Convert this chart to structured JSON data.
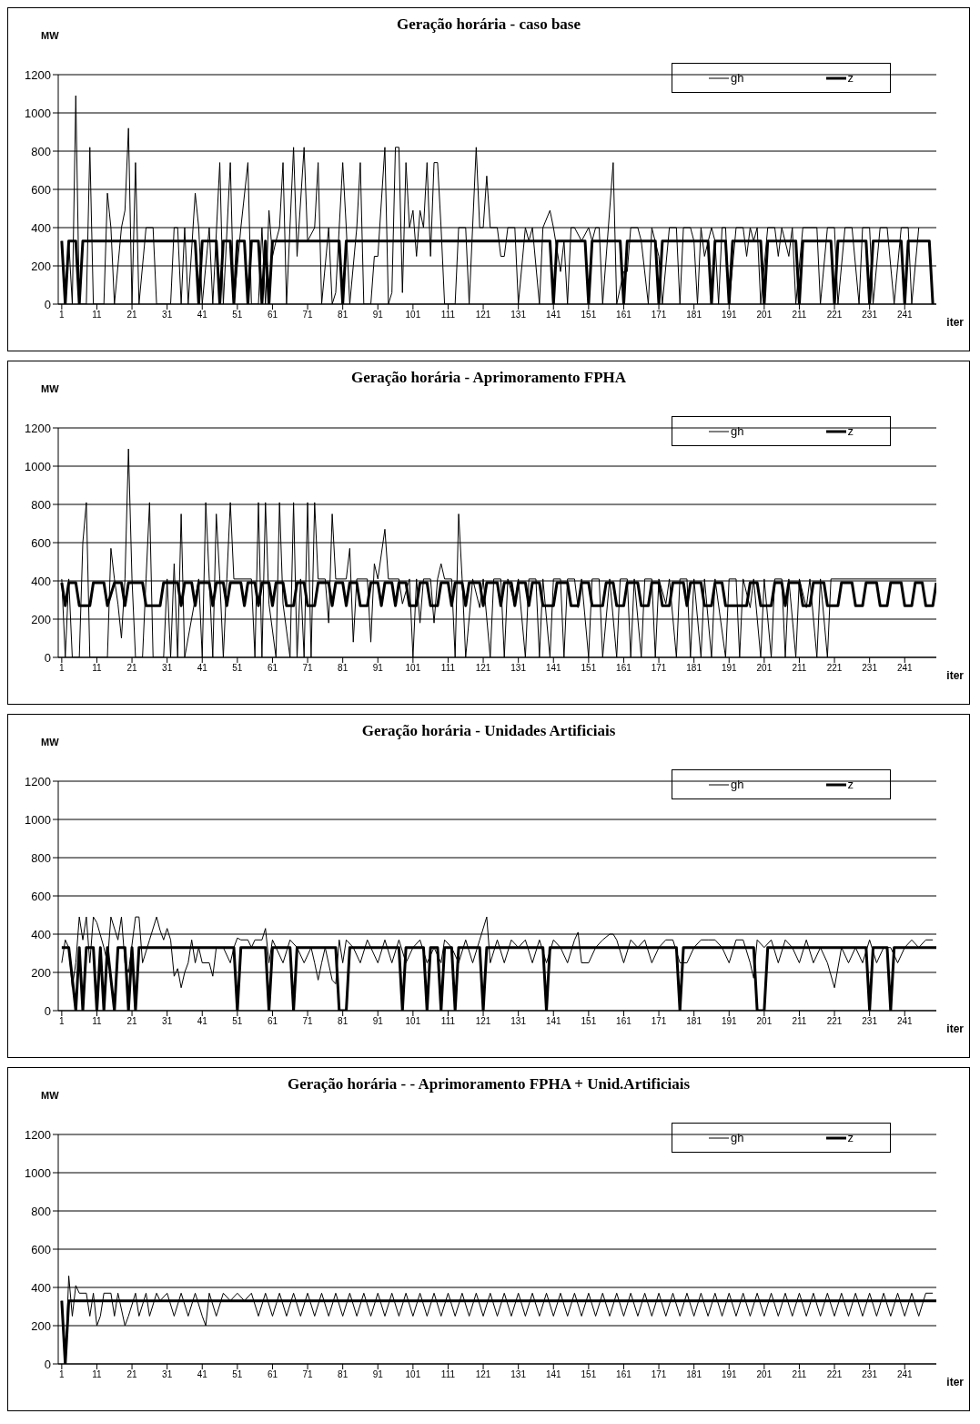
{
  "chart_data": [
    {
      "type": "line",
      "title": "Geração horária - caso base",
      "ylabel": "MW",
      "xlabel": "iter",
      "xlim": [
        0,
        250
      ],
      "xticks": [
        1,
        11,
        21,
        31,
        41,
        51,
        61,
        71,
        81,
        91,
        101,
        111,
        121,
        131,
        141,
        151,
        161,
        171,
        181,
        191,
        201,
        211,
        221,
        231,
        241
      ],
      "ylim": [
        0,
        1200
      ],
      "yticks": [
        0,
        200,
        400,
        600,
        800,
        1000,
        1200
      ],
      "grid": "y",
      "legend": "top right",
      "series": [
        {
          "name": "gh",
          "color": "#000000",
          "x": [
            1,
            2,
            3,
            4,
            5,
            6,
            8,
            9,
            10,
            13,
            14,
            15,
            16,
            18,
            19,
            20,
            21,
            22,
            23,
            25,
            27,
            28,
            32,
            33,
            34,
            35,
            36,
            37,
            39,
            40,
            41,
            43,
            44,
            46,
            47,
            49,
            50,
            52,
            54,
            55,
            57,
            58,
            59,
            60,
            61,
            62,
            63,
            64,
            65,
            67,
            68,
            70,
            71,
            73,
            74,
            75,
            77,
            78,
            79,
            81,
            82,
            83,
            85,
            86,
            87,
            89,
            90,
            91,
            93,
            94,
            95,
            96,
            97,
            98,
            99,
            100,
            101,
            102,
            103,
            104,
            105,
            106,
            107,
            108,
            109,
            110,
            113,
            114,
            116,
            117,
            119,
            120,
            121,
            122,
            123,
            125,
            126,
            127,
            128,
            130,
            131,
            133,
            134,
            135,
            137,
            138,
            140,
            141,
            143,
            144,
            145,
            146,
            147,
            149,
            151,
            152,
            153,
            154,
            155,
            158,
            159,
            161,
            162,
            163,
            165,
            166,
            168,
            169,
            171,
            172,
            174,
            176,
            177,
            178,
            180,
            181,
            182,
            183,
            184,
            186,
            187,
            188,
            189,
            190,
            191,
            193,
            195,
            196,
            197,
            198,
            199,
            200,
            202,
            204,
            205,
            206,
            208,
            209,
            210,
            212,
            214,
            216,
            217,
            219,
            221,
            222,
            224,
            226,
            228,
            229,
            231,
            232,
            234,
            236,
            238,
            240,
            242,
            243,
            245
          ],
          "values": [
            330,
            0,
            330,
            0,
            1090,
            0,
            0,
            820,
            0,
            0,
            580,
            400,
            0,
            400,
            490,
            920,
            0,
            740,
            0,
            400,
            400,
            0,
            0,
            400,
            400,
            0,
            400,
            0,
            580,
            400,
            0,
            400,
            0,
            740,
            0,
            740,
            0,
            400,
            740,
            0,
            0,
            400,
            0,
            490,
            250,
            330,
            400,
            740,
            0,
            820,
            250,
            820,
            330,
            400,
            740,
            0,
            400,
            0,
            60,
            740,
            400,
            0,
            400,
            740,
            0,
            0,
            250,
            250,
            820,
            0,
            60,
            820,
            820,
            60,
            740,
            400,
            490,
            250,
            490,
            400,
            740,
            250,
            740,
            740,
            400,
            0,
            0,
            400,
            400,
            0,
            820,
            400,
            400,
            670,
            400,
            400,
            250,
            250,
            400,
            400,
            0,
            400,
            330,
            400,
            0,
            400,
            490,
            400,
            170,
            330,
            0,
            400,
            400,
            330,
            400,
            330,
            400,
            400,
            0,
            740,
            0,
            170,
            170,
            400,
            400,
            330,
            0,
            400,
            250,
            0,
            400,
            400,
            0,
            400,
            400,
            330,
            0,
            400,
            250,
            400,
            330,
            0,
            400,
            400,
            0,
            400,
            400,
            250,
            400,
            330,
            400,
            0,
            400,
            400,
            250,
            400,
            250,
            400,
            0,
            400,
            400,
            400,
            0,
            400,
            400,
            0,
            400,
            400,
            0,
            400,
            400,
            0,
            400,
            400,
            0,
            400,
            400,
            0,
            400
          ]
        },
        {
          "name": "z",
          "color": "#000000",
          "x": [
            1,
            2,
            3,
            5,
            6,
            7,
            39,
            40,
            41,
            45,
            46,
            47,
            49,
            50,
            51,
            53,
            54,
            55,
            57,
            58,
            59,
            60,
            61,
            80,
            81,
            82,
            140,
            141,
            142,
            150,
            151,
            152,
            160,
            161,
            162,
            170,
            171,
            172,
            185,
            186,
            187,
            190,
            191,
            192,
            200,
            201,
            202,
            210,
            211,
            212,
            220,
            221,
            222,
            230,
            231,
            232,
            240,
            241,
            242,
            248,
            249
          ],
          "values": [
            330,
            0,
            330,
            330,
            0,
            330,
            330,
            0,
            330,
            330,
            0,
            330,
            330,
            0,
            330,
            330,
            0,
            330,
            330,
            0,
            330,
            0,
            330,
            330,
            0,
            330,
            330,
            0,
            330,
            330,
            0,
            330,
            330,
            0,
            330,
            330,
            0,
            330,
            330,
            0,
            330,
            330,
            0,
            330,
            330,
            0,
            330,
            330,
            0,
            330,
            330,
            0,
            330,
            330,
            0,
            330,
            330,
            0,
            330,
            330,
            0
          ]
        }
      ]
    },
    {
      "type": "line",
      "title": "Geração horária     - Aprimoramento FPHA",
      "ylabel": "MW",
      "xlabel": "iter",
      "xlim": [
        0,
        250
      ],
      "xticks": [
        1,
        11,
        21,
        31,
        41,
        51,
        61,
        71,
        81,
        91,
        101,
        111,
        121,
        131,
        141,
        151,
        161,
        171,
        181,
        191,
        201,
        211,
        221,
        231,
        241
      ],
      "ylim": [
        0,
        1200
      ],
      "yticks": [
        0,
        200,
        400,
        600,
        800,
        1000,
        1200
      ],
      "grid": "y",
      "legend": "top right",
      "series": [
        {
          "name": "gh",
          "color": "#000000",
          "x": [
            1,
            2,
            3,
            4,
            6,
            7,
            8,
            9,
            14,
            15,
            16,
            17,
            18,
            19,
            20,
            21,
            22,
            24,
            25,
            26,
            27,
            30,
            31,
            32,
            33,
            34,
            35,
            36,
            40,
            41,
            42,
            43,
            44,
            45,
            46,
            47,
            48,
            49,
            50,
            55,
            56,
            57,
            58,
            59,
            60,
            62,
            63,
            64,
            66,
            67,
            68,
            69,
            70,
            71,
            72,
            73,
            74,
            76,
            77,
            78,
            79,
            82,
            83,
            84,
            85,
            88,
            89,
            90,
            91,
            93,
            94,
            97,
            98,
            100,
            101,
            102,
            103,
            104,
            106,
            107,
            108,
            109,
            110,
            112,
            113,
            114,
            115,
            116,
            118,
            120,
            121,
            123,
            124,
            126,
            127,
            128,
            130,
            131,
            133,
            134,
            136,
            137,
            138,
            140,
            141,
            143,
            144,
            145,
            147,
            148,
            149,
            151,
            152,
            154,
            155,
            157,
            159,
            160,
            162,
            163,
            164,
            166,
            167,
            169,
            170,
            171,
            173,
            174,
            176,
            177,
            179,
            180,
            181,
            183,
            184,
            186,
            187,
            190,
            191,
            193,
            194,
            195,
            197,
            198,
            200,
            201,
            203,
            204,
            206,
            207,
            208,
            210,
            211,
            213,
            214,
            216,
            217,
            219,
            220,
            250
          ],
          "values": [
            410,
            0,
            410,
            0,
            0,
            600,
            810,
            0,
            0,
            570,
            410,
            280,
            100,
            410,
            1090,
            410,
            0,
            0,
            410,
            810,
            0,
            0,
            410,
            0,
            490,
            0,
            750,
            0,
            410,
            0,
            810,
            410,
            0,
            750,
            410,
            0,
            410,
            810,
            410,
            410,
            0,
            810,
            0,
            810,
            280,
            0,
            810,
            280,
            0,
            810,
            0,
            410,
            0,
            810,
            0,
            810,
            410,
            410,
            180,
            750,
            410,
            410,
            570,
            80,
            410,
            410,
            80,
            490,
            410,
            670,
            410,
            410,
            280,
            410,
            0,
            410,
            180,
            410,
            410,
            180,
            410,
            490,
            410,
            410,
            0,
            750,
            410,
            0,
            410,
            260,
            410,
            0,
            410,
            410,
            0,
            410,
            280,
            410,
            0,
            410,
            410,
            0,
            410,
            0,
            410,
            410,
            0,
            410,
            410,
            260,
            410,
            0,
            410,
            410,
            0,
            410,
            0,
            410,
            410,
            0,
            410,
            0,
            410,
            410,
            0,
            410,
            280,
            410,
            0,
            410,
            410,
            0,
            410,
            0,
            410,
            0,
            410,
            0,
            410,
            410,
            0,
            410,
            260,
            410,
            0,
            410,
            0,
            410,
            410,
            0,
            410,
            0,
            410,
            260,
            410,
            0,
            410,
            0,
            410,
            410
          ]
        },
        {
          "name": "z",
          "color": "#000000",
          "x": [
            1,
            2,
            3,
            5,
            6,
            9,
            10,
            13,
            14,
            16,
            18,
            19,
            20,
            24,
            25,
            29,
            30,
            34,
            35,
            36,
            38,
            39,
            40,
            43,
            44,
            45,
            47,
            48,
            49,
            52,
            53,
            54,
            56,
            57,
            58,
            60,
            61,
            62,
            64,
            65,
            67,
            68,
            70,
            71,
            73,
            74,
            77,
            78,
            79,
            81,
            82,
            83,
            85,
            86,
            88,
            89,
            91,
            92,
            93,
            95,
            96,
            97,
            99,
            100,
            102,
            103,
            105,
            106,
            108,
            109,
            111,
            112,
            113,
            115,
            116,
            117,
            120,
            121,
            122,
            125,
            126,
            127,
            129,
            130,
            131,
            133,
            134,
            135,
            137,
            138,
            141,
            142,
            145,
            146,
            148,
            149,
            151,
            152,
            155,
            156,
            158,
            159,
            161,
            162,
            165,
            166,
            168,
            169,
            171,
            172,
            174,
            175,
            178,
            179,
            180,
            183,
            184,
            186,
            187,
            189,
            190,
            196,
            197,
            199,
            200,
            203,
            204,
            206,
            207,
            208,
            211,
            212,
            214,
            215,
            218,
            219,
            222,
            223,
            226,
            227,
            229,
            230,
            233,
            234,
            236,
            237,
            240,
            241,
            243,
            244,
            246,
            247,
            249,
            250
          ],
          "values": [
            390,
            270,
            390,
            390,
            270,
            270,
            390,
            390,
            270,
            390,
            390,
            270,
            390,
            390,
            270,
            270,
            390,
            390,
            270,
            390,
            390,
            270,
            390,
            390,
            270,
            390,
            390,
            270,
            390,
            390,
            270,
            390,
            390,
            270,
            390,
            390,
            270,
            390,
            390,
            270,
            270,
            390,
            390,
            270,
            270,
            390,
            390,
            270,
            390,
            390,
            270,
            390,
            390,
            270,
            270,
            390,
            390,
            270,
            390,
            390,
            270,
            390,
            390,
            270,
            270,
            390,
            390,
            270,
            270,
            390,
            390,
            270,
            390,
            390,
            270,
            390,
            390,
            270,
            390,
            390,
            270,
            390,
            390,
            270,
            390,
            390,
            270,
            390,
            390,
            270,
            270,
            390,
            390,
            270,
            270,
            390,
            390,
            270,
            270,
            390,
            390,
            270,
            270,
            390,
            390,
            270,
            270,
            390,
            390,
            270,
            270,
            390,
            390,
            270,
            390,
            390,
            270,
            270,
            390,
            390,
            270,
            270,
            390,
            390,
            270,
            270,
            390,
            390,
            270,
            390,
            390,
            270,
            270,
            390,
            390,
            270,
            270,
            390,
            390,
            270,
            270,
            390,
            390,
            270,
            270,
            390,
            390,
            270,
            270,
            390,
            390,
            270,
            270,
            390
          ]
        }
      ]
    },
    {
      "type": "line",
      "title": "Geração horária - Unidades Artificiais",
      "ylabel": "MW",
      "xlabel": "iter",
      "xlim": [
        0,
        250
      ],
      "xticks": [
        1,
        11,
        21,
        31,
        41,
        51,
        61,
        71,
        81,
        91,
        101,
        111,
        121,
        131,
        141,
        151,
        161,
        171,
        181,
        191,
        201,
        211,
        221,
        231,
        241
      ],
      "ylim": [
        0,
        1200
      ],
      "yticks": [
        0,
        200,
        400,
        600,
        800,
        1000,
        1200
      ],
      "grid": "y",
      "legend": "top right",
      "series": [
        {
          "name": "gh",
          "color": "#000000",
          "x": [
            1,
            2,
            3,
            4,
            5,
            6,
            7,
            8,
            9,
            10,
            11,
            13,
            14,
            15,
            17,
            18,
            19,
            20,
            22,
            23,
            24,
            26,
            28,
            29,
            30,
            31,
            32,
            33,
            34,
            35,
            36,
            37,
            38,
            39,
            40,
            41,
            43,
            44,
            45,
            47,
            49,
            50,
            51,
            52,
            54,
            55,
            56,
            58,
            59,
            60,
            61,
            62,
            64,
            66,
            68,
            70,
            72,
            73,
            74,
            75,
            76,
            78,
            79,
            80,
            81,
            82,
            84,
            86,
            88,
            89,
            91,
            93,
            95,
            97,
            99,
            101,
            103,
            105,
            107,
            109,
            110,
            112,
            114,
            116,
            118,
            120,
            122,
            123,
            125,
            127,
            129,
            131,
            133,
            135,
            137,
            139,
            141,
            143,
            145,
            147,
            148,
            149,
            151,
            153,
            155,
            157,
            158,
            159,
            161,
            163,
            165,
            167,
            169,
            171,
            173,
            175,
            177,
            179,
            181,
            183,
            185,
            187,
            189,
            191,
            193,
            195,
            197,
            198,
            199,
            201,
            203,
            205,
            207,
            209,
            211,
            213,
            215,
            217,
            219,
            221,
            223,
            225,
            227,
            229,
            231,
            233,
            235,
            237,
            239,
            241,
            243,
            245,
            247,
            249
          ],
          "values": [
            250,
            370,
            330,
            120,
            250,
            490,
            370,
            490,
            250,
            490,
            460,
            330,
            250,
            490,
            370,
            490,
            250,
            200,
            490,
            490,
            250,
            370,
            490,
            420,
            370,
            430,
            370,
            180,
            220,
            120,
            200,
            250,
            370,
            250,
            330,
            250,
            250,
            180,
            330,
            330,
            250,
            330,
            380,
            370,
            370,
            330,
            370,
            370,
            430,
            250,
            370,
            330,
            250,
            370,
            330,
            250,
            330,
            250,
            160,
            250,
            330,
            160,
            140,
            370,
            250,
            370,
            330,
            250,
            370,
            330,
            250,
            370,
            250,
            370,
            250,
            330,
            370,
            250,
            330,
            250,
            370,
            330,
            250,
            370,
            250,
            370,
            490,
            250,
            370,
            250,
            370,
            330,
            370,
            250,
            370,
            250,
            370,
            330,
            250,
            370,
            410,
            250,
            250,
            330,
            370,
            400,
            400,
            370,
            250,
            370,
            330,
            370,
            250,
            330,
            370,
            370,
            250,
            250,
            330,
            370,
            370,
            370,
            330,
            250,
            370,
            370,
            250,
            170,
            370,
            330,
            370,
            250,
            370,
            330,
            250,
            370,
            250,
            330,
            250,
            120,
            330,
            250,
            330,
            250,
            370,
            250,
            330,
            330,
            250,
            330,
            370,
            330,
            370,
            370
          ]
        },
        {
          "name": "z",
          "color": "#000000",
          "x": [
            1,
            3,
            4,
            5,
            6,
            7,
            8,
            10,
            11,
            12,
            13,
            14,
            16,
            17,
            19,
            20,
            21,
            22,
            23,
            50,
            51,
            52,
            59,
            60,
            61,
            66,
            67,
            68,
            79,
            80,
            82,
            83,
            97,
            98,
            99,
            104,
            105,
            106,
            108,
            109,
            110,
            112,
            113,
            114,
            120,
            121,
            122,
            138,
            139,
            140,
            176,
            177,
            178,
            198,
            199,
            201,
            202,
            230,
            231,
            232,
            236,
            237,
            238,
            250
          ],
          "values": [
            330,
            330,
            170,
            0,
            330,
            0,
            330,
            330,
            0,
            330,
            0,
            330,
            0,
            330,
            330,
            0,
            330,
            0,
            330,
            330,
            0,
            330,
            330,
            0,
            330,
            330,
            0,
            330,
            330,
            0,
            0,
            330,
            330,
            0,
            330,
            330,
            0,
            330,
            330,
            0,
            330,
            330,
            0,
            330,
            330,
            0,
            330,
            330,
            0,
            330,
            330,
            0,
            330,
            330,
            0,
            0,
            330,
            330,
            0,
            330,
            330,
            0,
            330,
            330
          ]
        }
      ]
    },
    {
      "type": "line",
      "title": "Geração horária - - Aprimoramento FPHA + Unid.Artificiais",
      "ylabel": "MW",
      "xlabel": "iter",
      "xlim": [
        0,
        250
      ],
      "xticks": [
        1,
        11,
        21,
        31,
        41,
        51,
        61,
        71,
        81,
        91,
        101,
        111,
        121,
        131,
        141,
        151,
        161,
        171,
        181,
        191,
        201,
        211,
        221,
        231,
        241
      ],
      "ylim": [
        0,
        1200
      ],
      "yticks": [
        0,
        200,
        400,
        600,
        800,
        1000,
        1200
      ],
      "grid": "y",
      "legend": "top right",
      "series": [
        {
          "name": "gh",
          "color": "#000000",
          "x": [
            1,
            2,
            3,
            4,
            5,
            6,
            8,
            9,
            10,
            11,
            12,
            13,
            15,
            16,
            17,
            19,
            20,
            22,
            23,
            25,
            26,
            28,
            29,
            31,
            33,
            35,
            37,
            39,
            41,
            42,
            43,
            45,
            47,
            49,
            51,
            53,
            55,
            57,
            59,
            61,
            63,
            65,
            67,
            69,
            71,
            73,
            75,
            77,
            79,
            81,
            83,
            85,
            87,
            89,
            91,
            93,
            95,
            97,
            99,
            101,
            103,
            105,
            107,
            109,
            111,
            113,
            115,
            117,
            119,
            121,
            123,
            125,
            127,
            129,
            131,
            133,
            135,
            137,
            139,
            141,
            143,
            145,
            147,
            149,
            151,
            153,
            155,
            157,
            159,
            161,
            163,
            165,
            167,
            169,
            171,
            173,
            175,
            177,
            179,
            181,
            183,
            185,
            187,
            189,
            191,
            193,
            195,
            197,
            199,
            201,
            203,
            205,
            207,
            209,
            211,
            213,
            215,
            217,
            219,
            221,
            223,
            225,
            227,
            229,
            231,
            233,
            235,
            237,
            239,
            241,
            243,
            245,
            247,
            249
          ],
          "values": [
            330,
            0,
            460,
            250,
            410,
            370,
            370,
            250,
            370,
            200,
            250,
            370,
            370,
            250,
            370,
            200,
            250,
            370,
            250,
            370,
            250,
            370,
            330,
            370,
            250,
            370,
            250,
            370,
            250,
            200,
            370,
            250,
            370,
            330,
            370,
            330,
            370,
            250,
            370,
            250,
            370,
            250,
            370,
            250,
            370,
            250,
            370,
            250,
            370,
            250,
            370,
            250,
            370,
            250,
            370,
            250,
            370,
            250,
            370,
            250,
            370,
            250,
            370,
            250,
            370,
            250,
            370,
            250,
            370,
            250,
            370,
            250,
            370,
            250,
            370,
            250,
            370,
            250,
            370,
            250,
            370,
            250,
            370,
            250,
            370,
            250,
            370,
            250,
            370,
            250,
            370,
            250,
            370,
            250,
            370,
            250,
            370,
            250,
            370,
            250,
            370,
            250,
            370,
            250,
            370,
            250,
            370,
            250,
            370,
            250,
            370,
            250,
            370,
            250,
            370,
            250,
            370,
            250,
            370,
            250,
            370,
            250,
            370,
            250,
            370,
            250,
            370,
            250,
            370,
            250,
            370,
            250,
            370,
            370
          ]
        },
        {
          "name": "z",
          "color": "#000000",
          "x": [
            1,
            2,
            3,
            250
          ],
          "values": [
            330,
            0,
            330,
            330
          ]
        }
      ]
    }
  ]
}
